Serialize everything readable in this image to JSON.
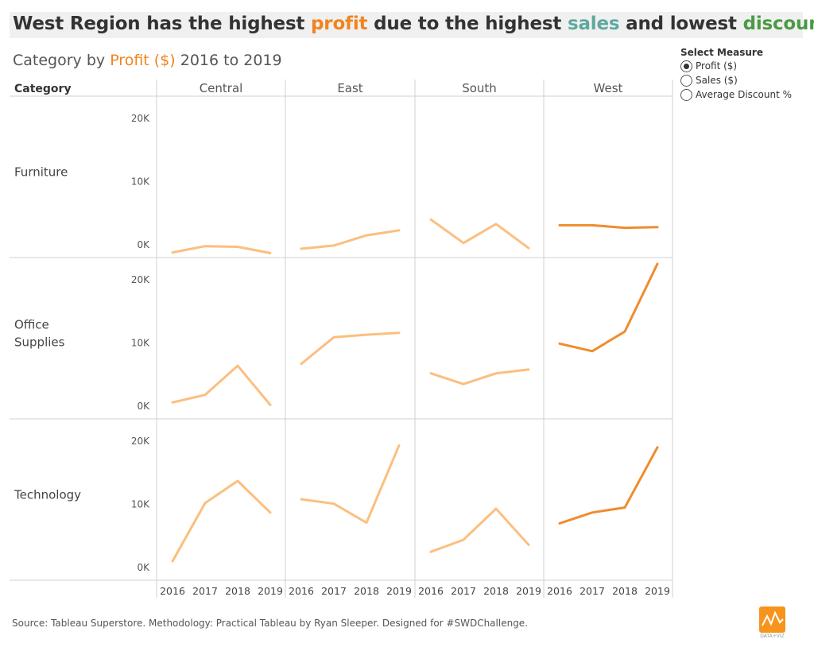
{
  "headline": {
    "p1": "West Region has the highest ",
    "p2": "profit",
    "p3": " due to the highest ",
    "p4": "sales",
    "p5": " and lowest ",
    "p6": "discounts"
  },
  "colors": {
    "profit": "#f0841f",
    "sales": "#5fa8a0",
    "discounts": "#4a9a45",
    "line_light": "#fbbf7f",
    "line_dark": "#ef8c2e",
    "grid": "#d0d0d0",
    "text": "#333333"
  },
  "subtitle": {
    "p1": "Category by ",
    "p2": "Profit ($)",
    "p3": " 2016 to 2019"
  },
  "control": {
    "title": "Select Measure",
    "options": [
      {
        "label": "Profit ($)",
        "selected": true
      },
      {
        "label": "Sales ($)",
        "selected": false
      },
      {
        "label": "Average Discount %",
        "selected": false
      }
    ]
  },
  "footer": {
    "source": "Source: Tableau Superstore. Methodology: Practical Tableau by Ryan Sleeper.  Designed for #SWDChallenge.",
    "logo_text": "DATA+VIZ"
  },
  "chart_data": {
    "type": "line",
    "row_header": "Category",
    "columns": [
      "Central",
      "East",
      "South",
      "West"
    ],
    "highlight_column": "West",
    "rows": [
      "Furniture",
      "Office Supplies",
      "Technology"
    ],
    "row_label_lines": [
      [
        "Furniture"
      ],
      [
        "Office",
        "Supplies"
      ],
      [
        "Technology"
      ]
    ],
    "x": [
      "2016",
      "2017",
      "2018",
      "2019"
    ],
    "y_ticks": [
      {
        "value": 0,
        "label": "0K"
      },
      {
        "value": 10000,
        "label": "10K"
      },
      {
        "value": 20000,
        "label": "20K"
      }
    ],
    "ylim": [
      -2000,
      23500
    ],
    "values": {
      "Furniture": {
        "Central": [
          -1200,
          -200,
          -300,
          -1300
        ],
        "East": [
          -600,
          -100,
          1500,
          2300
        ],
        "South": [
          4000,
          300,
          3300,
          -500
        ],
        "West": [
          3100,
          3100,
          2700,
          2800
        ]
      },
      "Office Supplies": {
        "Central": [
          600,
          1800,
          6400,
          200
        ],
        "East": [
          6700,
          10900,
          11300,
          11600
        ],
        "South": [
          5200,
          3500,
          5200,
          5800
        ],
        "West": [
          9900,
          8700,
          11800,
          22500
        ]
      },
      "Technology": {
        "Central": [
          1000,
          10200,
          13700,
          8700
        ],
        "East": [
          10800,
          10100,
          7100,
          19300
        ],
        "South": [
          2500,
          4400,
          9300,
          3600
        ],
        "West": [
          7000,
          8700,
          9500,
          19000
        ]
      }
    }
  }
}
